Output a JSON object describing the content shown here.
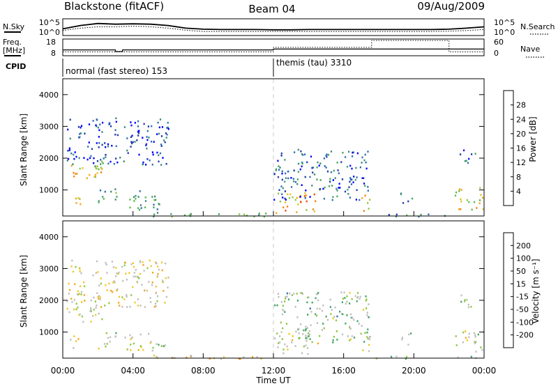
{
  "header": {
    "radar": "Blackstone (fitACF)",
    "beam": "Beam 04",
    "date": "09/Aug/2009"
  },
  "colors": {
    "accent_trace": "#000000",
    "guide_line": "#c8c8c8",
    "ground_scatter": "#bebebe",
    "dotted_pattern": "#000000"
  },
  "chart_data": [
    {
      "type": "line",
      "panel": "noise",
      "left_label": "N.Sky",
      "right_label": "N.Search",
      "left_ticks": [
        "10^5",
        "10^0"
      ],
      "right_ticks": [
        "10^5",
        "10^0"
      ],
      "x": [
        0,
        1,
        2,
        3,
        4,
        5,
        6,
        7,
        8,
        9,
        10,
        11,
        12,
        13,
        14,
        15,
        16,
        17,
        18,
        19,
        20,
        21,
        22,
        23,
        24
      ],
      "series": [
        {
          "name": "N.Sky",
          "values": [
            2.0,
            3.0,
            3.6,
            3.4,
            3.5,
            3.4,
            3.0,
            2.2,
            1.9,
            1.8,
            1.8,
            1.8,
            1.7,
            1.7,
            1.8,
            1.8,
            1.8,
            1.8,
            1.8,
            1.8,
            1.8,
            1.8,
            1.9,
            2.2,
            2.6
          ]
        },
        {
          "name": "N.Search",
          "values": [
            1.5,
            2.2,
            2.6,
            2.6,
            2.8,
            2.6,
            2.2,
            1.6,
            1.2,
            1.2,
            1.2,
            1.2,
            1.2,
            1.2,
            1.2,
            1.2,
            1.2,
            1.2,
            1.2,
            1.2,
            1.2,
            1.2,
            1.3,
            1.5,
            1.8
          ]
        }
      ]
    },
    {
      "type": "line",
      "panel": "frequency",
      "left_label": "Freq.",
      "left_unit": "[MHz]",
      "right_label": "Nave",
      "left_ticks": [
        "18",
        "8"
      ],
      "right_ticks": [
        "60",
        "0"
      ],
      "x": [
        0,
        2.9,
        3.0,
        3.3,
        3.4,
        12,
        17.6,
        22.0,
        24
      ],
      "series": [
        {
          "name": "Freq.",
          "values": [
            11.5,
            11.5,
            10.5,
            10.5,
            11.5,
            12.0,
            12.0,
            12.0,
            12.0
          ]
        },
        {
          "name": "Nave",
          "values": [
            14,
            14,
            14,
            14,
            14,
            30,
            55,
            14,
            14
          ]
        }
      ]
    },
    {
      "type": "table",
      "panel": "cpid",
      "label": "CPID",
      "segments": [
        {
          "start": 0,
          "text": "normal (fast stereo) 153"
        },
        {
          "start": 12,
          "text": "themis (tau) 3310"
        }
      ]
    },
    {
      "type": "heatmap",
      "panel": "power",
      "ylabel": "Slant Range [km]",
      "xlabel": "Time UT",
      "xlim": [
        0,
        24
      ],
      "ylim": [
        180,
        4500
      ],
      "yticks": [
        1000,
        2000,
        3000,
        4000
      ],
      "colorbar_label": "Power [dB]",
      "colorbar_ticks": [
        "28",
        "24",
        "20",
        "16",
        "12",
        "8",
        "4"
      ],
      "colorbar_range": [
        0,
        30
      ],
      "colorbar_colors": [
        "#0000ff",
        "#1f3ca8",
        "#2c6fb4",
        "#3d8a78",
        "#42a462",
        "#59b84a",
        "#8dc63f",
        "#e3c21d",
        "#f5a516",
        "#f57f12",
        "#f04b10",
        "#e60000"
      ],
      "regions": [
        {
          "t": [
            0.1,
            2.2
          ],
          "r": [
            1350,
            1850
          ],
          "v": 20
        },
        {
          "t": [
            1.8,
            2.6
          ],
          "r": [
            1600,
            2200
          ],
          "v": 12
        },
        {
          "t": [
            0.2,
            1.0
          ],
          "r": [
            500,
            900
          ],
          "v": 22
        },
        {
          "t": [
            2.0,
            3.2
          ],
          "r": [
            500,
            1050
          ],
          "v": 10
        },
        {
          "t": [
            3.5,
            5.9
          ],
          "r": [
            400,
            1000
          ],
          "v": 10
        },
        {
          "t": [
            0.2,
            6.0
          ],
          "r": [
            1800,
            3300
          ],
          "v": 4
        },
        {
          "t": [
            4.5,
            12.0
          ],
          "r": [
            180,
            320
          ],
          "v": 12
        },
        {
          "t": [
            12.1,
            14.5
          ],
          "r": [
            300,
            1000
          ],
          "v": 22
        },
        {
          "t": [
            12.0,
            17.5
          ],
          "r": [
            700,
            2300
          ],
          "v": 6
        },
        {
          "t": [
            16.8,
            17.5
          ],
          "r": [
            350,
            900
          ],
          "v": 20
        },
        {
          "t": [
            19.2,
            20.0
          ],
          "r": [
            600,
            1000
          ],
          "v": 8
        },
        {
          "t": [
            22.3,
            24.0
          ],
          "r": [
            400,
            1100
          ],
          "v": 18
        },
        {
          "t": [
            22.5,
            23.5
          ],
          "r": [
            1800,
            2300
          ],
          "v": 6
        },
        {
          "t": [
            17.8,
            24.0
          ],
          "r": [
            180,
            260
          ],
          "v": 8
        }
      ]
    },
    {
      "type": "heatmap",
      "panel": "velocity",
      "ylabel": "Slant Range [km]",
      "xlabel": "Time UT",
      "xticks": [
        "00:00",
        "04:00",
        "08:00",
        "12:00",
        "16:00",
        "20:00",
        "00:00"
      ],
      "xlim": [
        0,
        24
      ],
      "ylim": [
        180,
        4500
      ],
      "yticks": [
        1000,
        2000,
        3000,
        4000
      ],
      "colorbar_label": "Velocity [m s⁻¹]",
      "colorbar_ticks": [
        "200",
        "100",
        "50",
        "15",
        "-15",
        "-50",
        "-100",
        "-200"
      ],
      "colorbar_range": [
        -250,
        250
      ],
      "colorbar_colors": [
        "#e60000",
        "#f04b10",
        "#f57f12",
        "#f5a516",
        "#f0c81e",
        "#bebebe",
        "#bebebe",
        "#8dc63f",
        "#42a462",
        "#2c6fb4",
        "#1f3ca8",
        "#0000c8"
      ],
      "regions": [
        {
          "t": [
            0.1,
            2.2
          ],
          "r": [
            1350,
            1850
          ],
          "v": 0
        },
        {
          "t": [
            1.8,
            2.6
          ],
          "r": [
            1600,
            2200
          ],
          "v": 0
        },
        {
          "t": [
            0.2,
            1.0
          ],
          "r": [
            500,
            900
          ],
          "v": -40
        },
        {
          "t": [
            2.0,
            3.2
          ],
          "r": [
            500,
            1050
          ],
          "v": 0
        },
        {
          "t": [
            3.5,
            5.9
          ],
          "r": [
            400,
            1000
          ],
          "v": 0
        },
        {
          "t": [
            0.2,
            6.0
          ],
          "r": [
            1800,
            3300
          ],
          "v": -20
        },
        {
          "t": [
            4.5,
            12.0
          ],
          "r": [
            180,
            320
          ],
          "v": -60
        },
        {
          "t": [
            12.1,
            14.5
          ],
          "r": [
            300,
            1000
          ],
          "v": 0
        },
        {
          "t": [
            12.0,
            17.5
          ],
          "r": [
            700,
            2300
          ],
          "v": 40
        },
        {
          "t": [
            16.8,
            17.5
          ],
          "r": [
            350,
            900
          ],
          "v": 0
        },
        {
          "t": [
            19.2,
            20.0
          ],
          "r": [
            600,
            1000
          ],
          "v": 40
        },
        {
          "t": [
            22.3,
            24.0
          ],
          "r": [
            400,
            1100
          ],
          "v": 0
        },
        {
          "t": [
            22.5,
            23.5
          ],
          "r": [
            1800,
            2300
          ],
          "v": 40
        },
        {
          "t": [
            17.8,
            24.0
          ],
          "r": [
            180,
            260
          ],
          "v": 40
        }
      ]
    }
  ]
}
